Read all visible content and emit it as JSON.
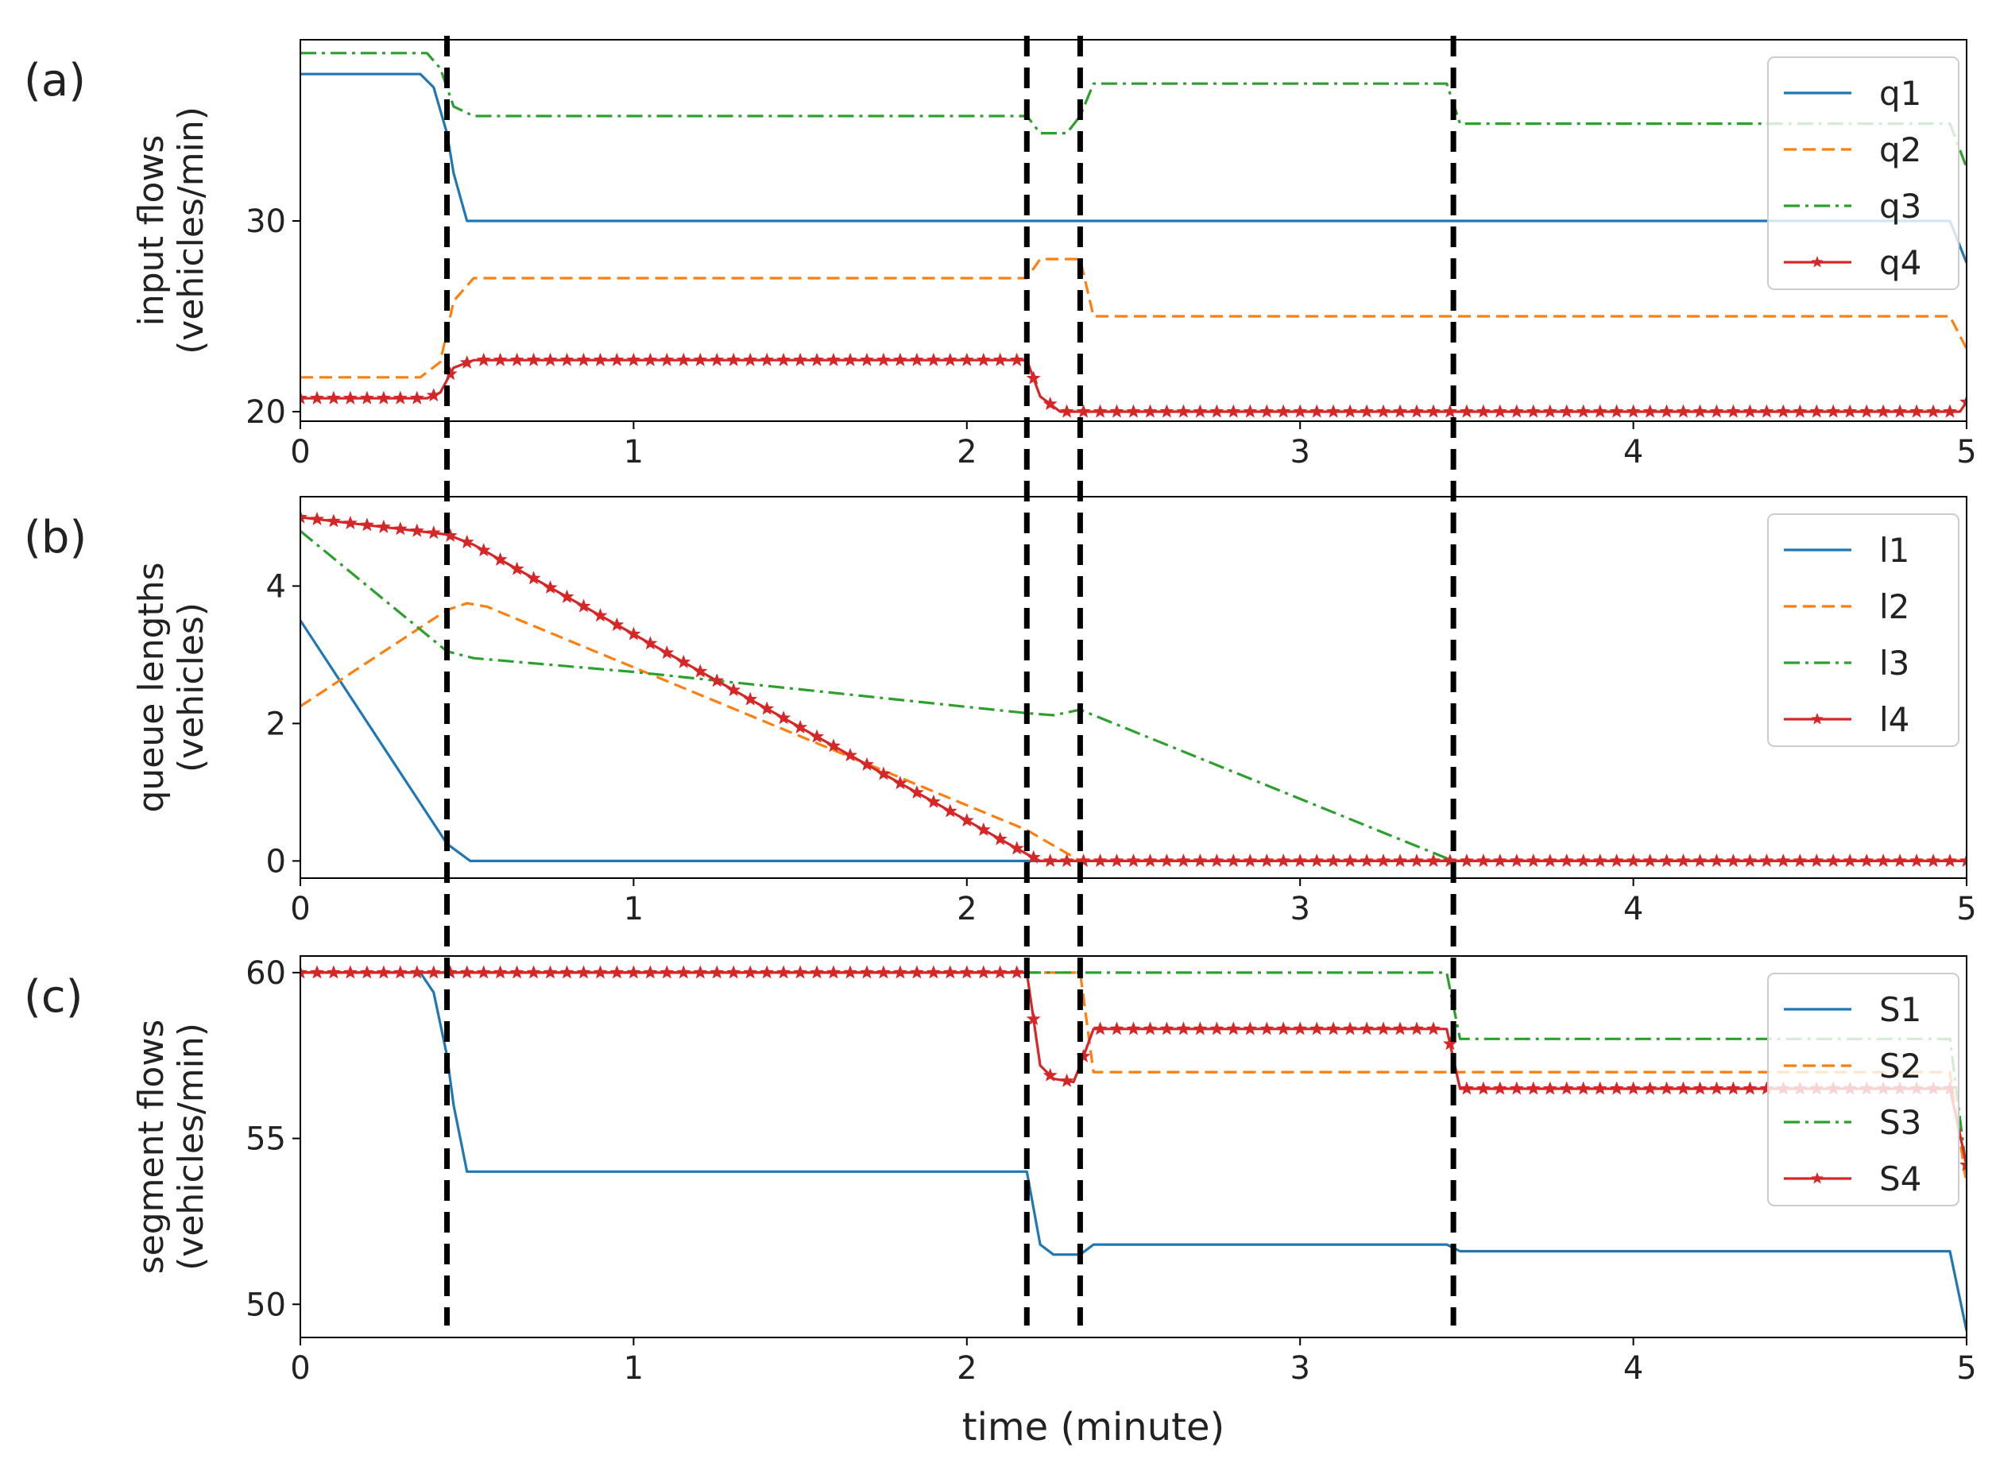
{
  "figure": {
    "xlabel": "time (minute)",
    "event_times": [
      0.44,
      2.18,
      2.34,
      3.46
    ]
  },
  "chart_data": [
    {
      "type": "line",
      "panel_label": "(a)",
      "ylabel_lines": [
        "input flows",
        "(vehicles/min)"
      ],
      "xlabel": "",
      "xlim": [
        0,
        5
      ],
      "ylim": [
        19.5,
        39.5
      ],
      "xticks": [
        0,
        1,
        2,
        3,
        4,
        5
      ],
      "yticks": [
        20,
        30
      ],
      "grid": false,
      "legend_position": "top-right",
      "series": [
        {
          "name": "q1",
          "color": "#1f77b4",
          "style": "solid",
          "marker": "none",
          "x": [
            0,
            0.36,
            0.4,
            0.44,
            0.46,
            0.5,
            0.52,
            4.95,
            5.0
          ],
          "y": [
            37.7,
            37.7,
            37.0,
            34.6,
            32.5,
            30.0,
            30.0,
            30.0,
            27.8
          ]
        },
        {
          "name": "q2",
          "color": "#ff7f0e",
          "style": "dashed",
          "marker": "none",
          "x": [
            0,
            0.36,
            0.42,
            0.46,
            0.52,
            2.18,
            2.22,
            2.34,
            2.38,
            4.95,
            5.0
          ],
          "y": [
            21.8,
            21.8,
            22.6,
            25.8,
            27.0,
            27.0,
            28.0,
            28.0,
            25.0,
            25.0,
            23.3
          ]
        },
        {
          "name": "q3",
          "color": "#2ca02c",
          "style": "dashdot",
          "marker": "none",
          "x": [
            0,
            0.38,
            0.42,
            0.46,
            0.52,
            2.18,
            2.22,
            2.3,
            2.34,
            2.38,
            3.44,
            3.48,
            4.95,
            5.0
          ],
          "y": [
            38.8,
            38.8,
            38.0,
            36.0,
            35.5,
            35.5,
            34.6,
            34.6,
            35.5,
            37.2,
            37.2,
            35.1,
            35.1,
            32.8
          ]
        },
        {
          "name": "q4",
          "color": "#d62728",
          "style": "solid",
          "marker": "star",
          "x": [
            0,
            0.38,
            0.42,
            0.46,
            0.52,
            2.18,
            2.22,
            2.28,
            4.98,
            5.0
          ],
          "y": [
            20.7,
            20.7,
            21.0,
            22.3,
            22.7,
            22.7,
            20.8,
            20.0,
            20.0,
            20.5
          ]
        }
      ]
    },
    {
      "type": "line",
      "panel_label": "(b)",
      "ylabel_lines": [
        "queue lengths",
        "(vehicles)"
      ],
      "xlabel": "",
      "xlim": [
        0,
        5
      ],
      "ylim": [
        -0.25,
        5.3
      ],
      "xticks": [
        0,
        1,
        2,
        3,
        4,
        5
      ],
      "yticks": [
        0,
        2,
        4
      ],
      "grid": false,
      "legend_position": "top-right",
      "series": [
        {
          "name": "l1",
          "color": "#1f77b4",
          "style": "solid",
          "marker": "none",
          "x": [
            0,
            0.44,
            0.51,
            5.0
          ],
          "y": [
            3.5,
            0.25,
            0.0,
            0.0
          ]
        },
        {
          "name": "l2",
          "color": "#ff7f0e",
          "style": "dashed",
          "marker": "none",
          "x": [
            0,
            0.44,
            0.5,
            0.56,
            2.18,
            2.34,
            5.0
          ],
          "y": [
            2.25,
            3.65,
            3.75,
            3.7,
            0.45,
            0.0,
            0.0
          ]
        },
        {
          "name": "l3",
          "color": "#2ca02c",
          "style": "dashdot",
          "marker": "none",
          "x": [
            0,
            0.44,
            0.52,
            1.0,
            2.18,
            2.26,
            2.34,
            3.46,
            5.0
          ],
          "y": [
            4.8,
            3.05,
            2.95,
            2.75,
            2.15,
            2.12,
            2.2,
            0.0,
            0.0
          ]
        },
        {
          "name": "l4",
          "color": "#d62728",
          "style": "solid",
          "marker": "star",
          "x": [
            0,
            0.44,
            0.52,
            2.18,
            2.22,
            5.0
          ],
          "y": [
            5.0,
            4.75,
            4.6,
            0.1,
            0.0,
            0.0
          ]
        }
      ]
    },
    {
      "type": "line",
      "panel_label": "(c)",
      "ylabel_lines": [
        "segment flows",
        "(vehicles/min)"
      ],
      "xlabel": "time (minute)",
      "xlim": [
        0,
        5
      ],
      "ylim": [
        49.0,
        60.5
      ],
      "xticks": [
        0,
        1,
        2,
        3,
        4,
        5
      ],
      "yticks": [
        50,
        55,
        60
      ],
      "grid": false,
      "legend_position": "right",
      "series": [
        {
          "name": "S1",
          "color": "#1f77b4",
          "style": "solid",
          "marker": "none",
          "x": [
            0,
            0.36,
            0.4,
            0.44,
            0.46,
            0.5,
            0.52,
            2.18,
            2.22,
            2.26,
            2.34,
            2.38,
            3.44,
            3.48,
            4.95,
            5.0
          ],
          "y": [
            60.0,
            60.0,
            59.4,
            57.5,
            56.0,
            54.0,
            54.0,
            54.0,
            51.8,
            51.5,
            51.5,
            51.8,
            51.8,
            51.6,
            51.6,
            49.2
          ]
        },
        {
          "name": "S2",
          "color": "#ff7f0e",
          "style": "dashed",
          "marker": "none",
          "x": [
            0,
            2.18,
            2.34,
            2.38,
            4.95,
            5.0
          ],
          "y": [
            60.0,
            60.0,
            60.0,
            57.0,
            57.0,
            53.6
          ]
        },
        {
          "name": "S3",
          "color": "#2ca02c",
          "style": "dashdot",
          "marker": "none",
          "x": [
            0,
            3.44,
            3.48,
            4.95,
            5.0
          ],
          "y": [
            60.0,
            60.0,
            58.0,
            58.0,
            54.0
          ]
        },
        {
          "name": "S4",
          "color": "#d62728",
          "style": "solid",
          "marker": "star",
          "x": [
            0,
            2.18,
            2.22,
            2.26,
            2.32,
            2.34,
            2.38,
            3.44,
            3.48,
            4.95,
            5.0
          ],
          "y": [
            60.0,
            60.0,
            57.2,
            56.8,
            56.7,
            57.2,
            58.3,
            58.3,
            56.5,
            56.5,
            54.2
          ]
        }
      ]
    }
  ]
}
